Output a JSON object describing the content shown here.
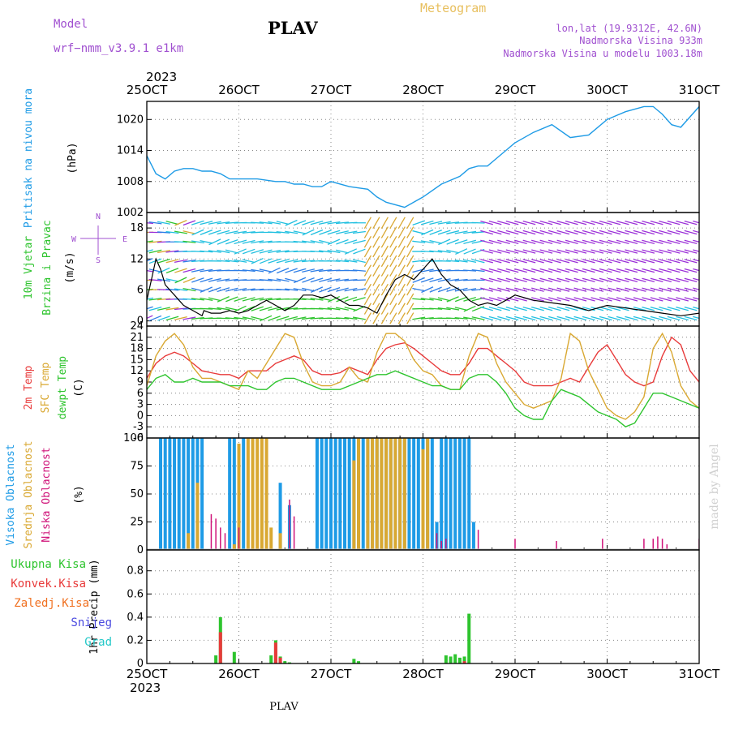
{
  "header": {
    "model_label": "Model",
    "model_name": "wrf−nmm_v3.9.1  e1km",
    "station": "PLAV",
    "product": "Meteogram",
    "lonlat": "lon,lat (19.9312E, 42.6N)",
    "elevation": "Nadmorska Visina 933m",
    "model_elevation": "Nadmorska Visina u modelu 1003.18m",
    "year_top": "2023",
    "year_bottom": "2023",
    "footer_station": "PLAV",
    "credit": "made by Angel"
  },
  "colors": {
    "pressure": "#1e9be6",
    "temp2m": "#e83a3a",
    "sfc_temp": "#d9a832",
    "dewpt": "#2ec42e",
    "high_cloud": "#1e9be6",
    "mid_cloud": "#d9a832",
    "low_cloud": "#d0147a",
    "total_precip": "#2ec42e",
    "conv_precip": "#e83a3a",
    "frozen_precip": "#f07020",
    "snow": "#4a4ae0",
    "hail": "#22c8c8",
    "model_text": "#a050d0",
    "meteogram_text": "#e8c060"
  },
  "chart_data": [
    {
      "type": "line",
      "name": "pressure-panel",
      "ylabel": [
        "Pritisak na nivou mora",
        "(hPa)"
      ],
      "ylim": [
        1002,
        1023.5
      ],
      "yticks": [
        1002,
        1008,
        1014,
        1020
      ],
      "x_ticks": [
        "25OCT",
        "26OCT",
        "27OCT",
        "28OCT",
        "29OCT",
        "30OCT",
        "31OCT"
      ],
      "xlim": [
        0,
        6
      ],
      "grid": true,
      "series": [
        {
          "key": "pressure",
          "x": [
            0,
            0.1,
            0.2,
            0.3,
            0.4,
            0.5,
            0.6,
            0.7,
            0.8,
            0.9,
            1.0,
            1.2,
            1.4,
            1.5,
            1.6,
            1.7,
            1.8,
            1.9,
            2.0,
            2.2,
            2.4,
            2.5,
            2.6,
            2.8,
            3.0,
            3.2,
            3.4,
            3.5,
            3.6,
            3.7,
            3.8,
            3.9,
            4.0,
            4.2,
            4.4,
            4.6,
            4.8,
            5.0,
            5.2,
            5.4,
            5.5,
            5.6,
            5.7,
            5.8,
            6.0
          ],
          "values": [
            1013,
            1009.5,
            1008.5,
            1010,
            1010.5,
            1010.5,
            1010,
            1010,
            1009.5,
            1008.5,
            1008.5,
            1008.5,
            1008,
            1008,
            1007.5,
            1007.5,
            1007,
            1007,
            1008,
            1007,
            1006.5,
            1005,
            1004,
            1003,
            1005,
            1007.5,
            1009,
            1010.5,
            1011,
            1011,
            1012.5,
            1014,
            1015.5,
            1017.5,
            1019,
            1016.5,
            1017,
            1020,
            1021.5,
            1022.5,
            1022.5,
            1021,
            1019,
            1018.5,
            1022.5
          ]
        }
      ]
    },
    {
      "type": "line",
      "name": "wind-panel",
      "ylabel": [
        "10m Vjetar",
        "Brzina i Pravac",
        "(m/s)"
      ],
      "compass": [
        "N",
        "S",
        "W",
        "E"
      ],
      "ylim": [
        -1,
        21
      ],
      "yticks": [
        0,
        6,
        12,
        18
      ],
      "grid": true,
      "series": [
        {
          "key": "wind_speed",
          "x": [
            0,
            0.05,
            0.1,
            0.15,
            0.2,
            0.25,
            0.3,
            0.35,
            0.4,
            0.5,
            0.6,
            0.62,
            0.7,
            0.8,
            0.9,
            1.0,
            1.1,
            1.2,
            1.3,
            1.4,
            1.5,
            1.6,
            1.7,
            1.8,
            1.9,
            2.0,
            2.1,
            2.2,
            2.3,
            2.4,
            2.5,
            2.6,
            2.7,
            2.8,
            2.9,
            3.0,
            3.1,
            3.2,
            3.3,
            3.4,
            3.5,
            3.6,
            3.7,
            3.8,
            3.9,
            4.0,
            4.2,
            4.4,
            4.6,
            4.8,
            5.0,
            5.2,
            5.4,
            5.6,
            5.8,
            6.0
          ],
          "values": [
            4,
            8,
            12,
            10,
            7,
            6,
            5,
            4,
            3,
            2,
            1,
            2,
            1.5,
            1.5,
            2,
            1.5,
            2,
            3,
            4,
            3,
            2,
            3,
            5,
            5,
            4.5,
            5,
            4,
            3,
            3,
            2.5,
            1.5,
            5,
            8,
            9,
            8,
            10,
            12,
            9,
            7,
            6,
            4,
            3,
            3.5,
            3,
            4,
            5,
            4,
            3.5,
            3,
            2,
            3,
            2.5,
            2,
            1.5,
            1,
            1.5
          ]
        }
      ]
    },
    {
      "type": "line",
      "name": "temperature-panel",
      "ylabel": [
        "2m Temp",
        "SFC Temp",
        "dewpt Temp",
        "(C)"
      ],
      "ylim": [
        -6,
        24
      ],
      "yticks": [
        -6,
        -3,
        0,
        3,
        6,
        9,
        12,
        15,
        18,
        21,
        24
      ],
      "grid": true,
      "series": [
        {
          "key": "temp2m",
          "x": [
            0,
            0.1,
            0.2,
            0.3,
            0.4,
            0.5,
            0.6,
            0.7,
            0.8,
            0.9,
            1.0,
            1.1,
            1.2,
            1.3,
            1.4,
            1.5,
            1.6,
            1.7,
            1.8,
            1.9,
            2.0,
            2.1,
            2.2,
            2.3,
            2.4,
            2.5,
            2.6,
            2.7,
            2.8,
            2.9,
            3.0,
            3.1,
            3.2,
            3.3,
            3.4,
            3.5,
            3.6,
            3.7,
            3.8,
            3.9,
            4.0,
            4.1,
            4.2,
            4.3,
            4.4,
            4.5,
            4.6,
            4.7,
            4.8,
            4.9,
            5.0,
            5.1,
            5.2,
            5.3,
            5.4,
            5.5,
            5.6,
            5.7,
            5.8,
            5.9,
            6.0
          ],
          "values": [
            10,
            14,
            16,
            17,
            16,
            14,
            12,
            11.5,
            11,
            11,
            10,
            12,
            12,
            12,
            14,
            15,
            16,
            15,
            12,
            11,
            11,
            11.5,
            13,
            12,
            11,
            15,
            18,
            19,
            19.5,
            18,
            16,
            14,
            12,
            11,
            11,
            14,
            18,
            18,
            16,
            14,
            12,
            9,
            8,
            8,
            8,
            9,
            10,
            9,
            13,
            17,
            19,
            15,
            11,
            9,
            8,
            9,
            16,
            21,
            19,
            12,
            9
          ]
        },
        {
          "key": "sfc_temp",
          "x": [
            0,
            0.1,
            0.2,
            0.3,
            0.4,
            0.5,
            0.6,
            0.7,
            0.8,
            0.9,
            1.0,
            1.1,
            1.2,
            1.3,
            1.4,
            1.5,
            1.6,
            1.7,
            1.8,
            1.9,
            2.0,
            2.1,
            2.2,
            2.3,
            2.4,
            2.5,
            2.6,
            2.7,
            2.8,
            2.9,
            3.0,
            3.1,
            3.2,
            3.3,
            3.4,
            3.5,
            3.6,
            3.7,
            3.8,
            3.9,
            4.0,
            4.1,
            4.2,
            4.3,
            4.4,
            4.5,
            4.6,
            4.7,
            4.8,
            4.9,
            5.0,
            5.1,
            5.2,
            5.3,
            5.4,
            5.5,
            5.6,
            5.7,
            5.8,
            5.9,
            6.0
          ],
          "values": [
            8,
            16,
            20,
            22,
            19,
            13,
            10,
            10,
            9,
            8,
            7,
            12,
            10,
            14,
            18,
            22,
            21,
            14,
            9,
            8,
            8,
            9,
            13,
            10,
            9,
            17,
            22,
            22,
            20,
            15,
            12,
            11,
            8,
            7,
            7,
            16,
            22,
            21,
            14,
            9,
            6,
            3,
            2,
            3,
            4,
            10,
            22,
            20,
            12,
            7,
            2,
            0,
            -1,
            1,
            5,
            18,
            22,
            17,
            8,
            4,
            2
          ]
        },
        {
          "key": "dewpt",
          "x": [
            0,
            0.1,
            0.2,
            0.3,
            0.4,
            0.5,
            0.6,
            0.7,
            0.8,
            0.9,
            1.0,
            1.1,
            1.2,
            1.3,
            1.4,
            1.5,
            1.6,
            1.7,
            1.8,
            1.9,
            2.0,
            2.1,
            2.2,
            2.3,
            2.4,
            2.5,
            2.6,
            2.7,
            2.8,
            2.9,
            3.0,
            3.1,
            3.2,
            3.3,
            3.4,
            3.5,
            3.6,
            3.7,
            3.8,
            3.9,
            4.0,
            4.1,
            4.2,
            4.3,
            4.4,
            4.5,
            4.6,
            4.7,
            4.8,
            4.9,
            5.0,
            5.1,
            5.2,
            5.3,
            5.4,
            5.5,
            5.6,
            5.7,
            5.8,
            5.9,
            6.0
          ],
          "values": [
            7,
            10,
            11,
            9,
            9,
            10,
            9,
            9,
            9,
            8,
            8,
            8,
            7,
            7,
            9,
            10,
            10,
            9,
            8,
            7,
            7,
            7,
            8,
            9,
            10,
            11,
            11,
            12,
            11,
            10,
            9,
            8,
            8,
            7,
            7,
            10,
            11,
            11,
            9,
            6,
            2,
            0,
            -1,
            -1,
            4,
            7,
            6,
            5,
            3,
            1,
            0,
            -1,
            -3,
            -2,
            2,
            6,
            6,
            5,
            4,
            3,
            2
          ]
        }
      ]
    },
    {
      "type": "bar",
      "name": "cloud-panel",
      "ylabel": [
        "Visoka Oblacnost",
        "Srednja Oblacnost",
        "Niska Oblacnost",
        "(%)"
      ],
      "ylim": [
        0,
        100
      ],
      "yticks": [
        0,
        25,
        50,
        75,
        100
      ],
      "grid": true,
      "series": [
        {
          "key": "high_cloud",
          "x": [
            0.15,
            0.2,
            0.25,
            0.3,
            0.35,
            0.4,
            0.45,
            0.5,
            0.55,
            0.6,
            0.9,
            0.95,
            1.0,
            1.05,
            1.45,
            1.55,
            1.85,
            1.9,
            1.95,
            2.0,
            2.05,
            2.1,
            2.15,
            2.2,
            2.25,
            2.3,
            2.35,
            2.4,
            2.45,
            2.5,
            2.55,
            2.6,
            2.65,
            2.7,
            2.75,
            2.8,
            2.85,
            2.9,
            2.95,
            3.0,
            3.05,
            3.1,
            3.15,
            3.2,
            3.25,
            3.3,
            3.35,
            3.4,
            3.45,
            3.5,
            3.55
          ],
          "values": [
            100,
            100,
            100,
            100,
            100,
            100,
            100,
            100,
            100,
            100,
            100,
            100,
            80,
            100,
            60,
            40,
            100,
            100,
            100,
            100,
            100,
            100,
            100,
            100,
            100,
            100,
            100,
            100,
            100,
            100,
            100,
            100,
            100,
            100,
            100,
            100,
            100,
            100,
            100,
            100,
            100,
            100,
            25,
            100,
            100,
            100,
            100,
            100,
            100,
            100,
            25
          ]
        },
        {
          "key": "mid_cloud",
          "x": [
            0.45,
            0.55,
            0.95,
            1.0,
            1.1,
            1.15,
            1.2,
            1.25,
            1.3,
            1.35,
            1.45,
            2.25,
            2.3,
            2.4,
            2.45,
            2.5,
            2.55,
            2.6,
            2.65,
            2.7,
            2.75,
            2.8,
            3.0,
            3.05
          ],
          "values": [
            15,
            60,
            5,
            95,
            100,
            100,
            100,
            100,
            100,
            20,
            15,
            80,
            100,
            100,
            100,
            100,
            100,
            100,
            100,
            100,
            100,
            100,
            90,
            100
          ]
        },
        {
          "key": "low_cloud",
          "x": [
            0.7,
            0.75,
            0.8,
            0.85,
            1.0,
            1.55,
            1.6,
            3.15,
            3.2,
            3.25,
            3.6,
            4.0,
            4.45,
            4.95,
            5.4,
            5.5,
            5.55,
            5.6,
            5.65,
            6.0
          ],
          "values": [
            32,
            28,
            20,
            15,
            20,
            45,
            30,
            15,
            8,
            10,
            18,
            10,
            8,
            10,
            10,
            10,
            12,
            10,
            5,
            10
          ]
        }
      ]
    },
    {
      "type": "bar",
      "name": "precip-panel",
      "ylabel": [
        "1hr Precip (mm)"
      ],
      "legend": [
        "Ukupna Kisa",
        "Konvek.Kisa",
        "Zaledj.Kisa",
        "Snijeg",
        "Grad"
      ],
      "ylim": [
        0,
        0.98
      ],
      "yticks": [
        0,
        0.2,
        0.4,
        0.6,
        0.8
      ],
      "grid": true,
      "series": [
        {
          "key": "total_precip",
          "x": [
            0.75,
            0.8,
            0.95,
            1.35,
            1.4,
            1.45,
            1.5,
            1.55,
            2.25,
            2.3,
            3.25,
            3.3,
            3.35,
            3.4,
            3.45,
            3.5
          ],
          "values": [
            0.07,
            0.4,
            0.1,
            0.07,
            0.2,
            0.06,
            0.02,
            0.01,
            0.04,
            0.02,
            0.07,
            0.06,
            0.08,
            0.05,
            0.06,
            0.43
          ]
        },
        {
          "key": "conv_precip",
          "x": [
            0.8,
            1.4,
            1.45,
            3.45
          ],
          "values": [
            0.27,
            0.18,
            0.05,
            0.02
          ]
        }
      ]
    }
  ]
}
